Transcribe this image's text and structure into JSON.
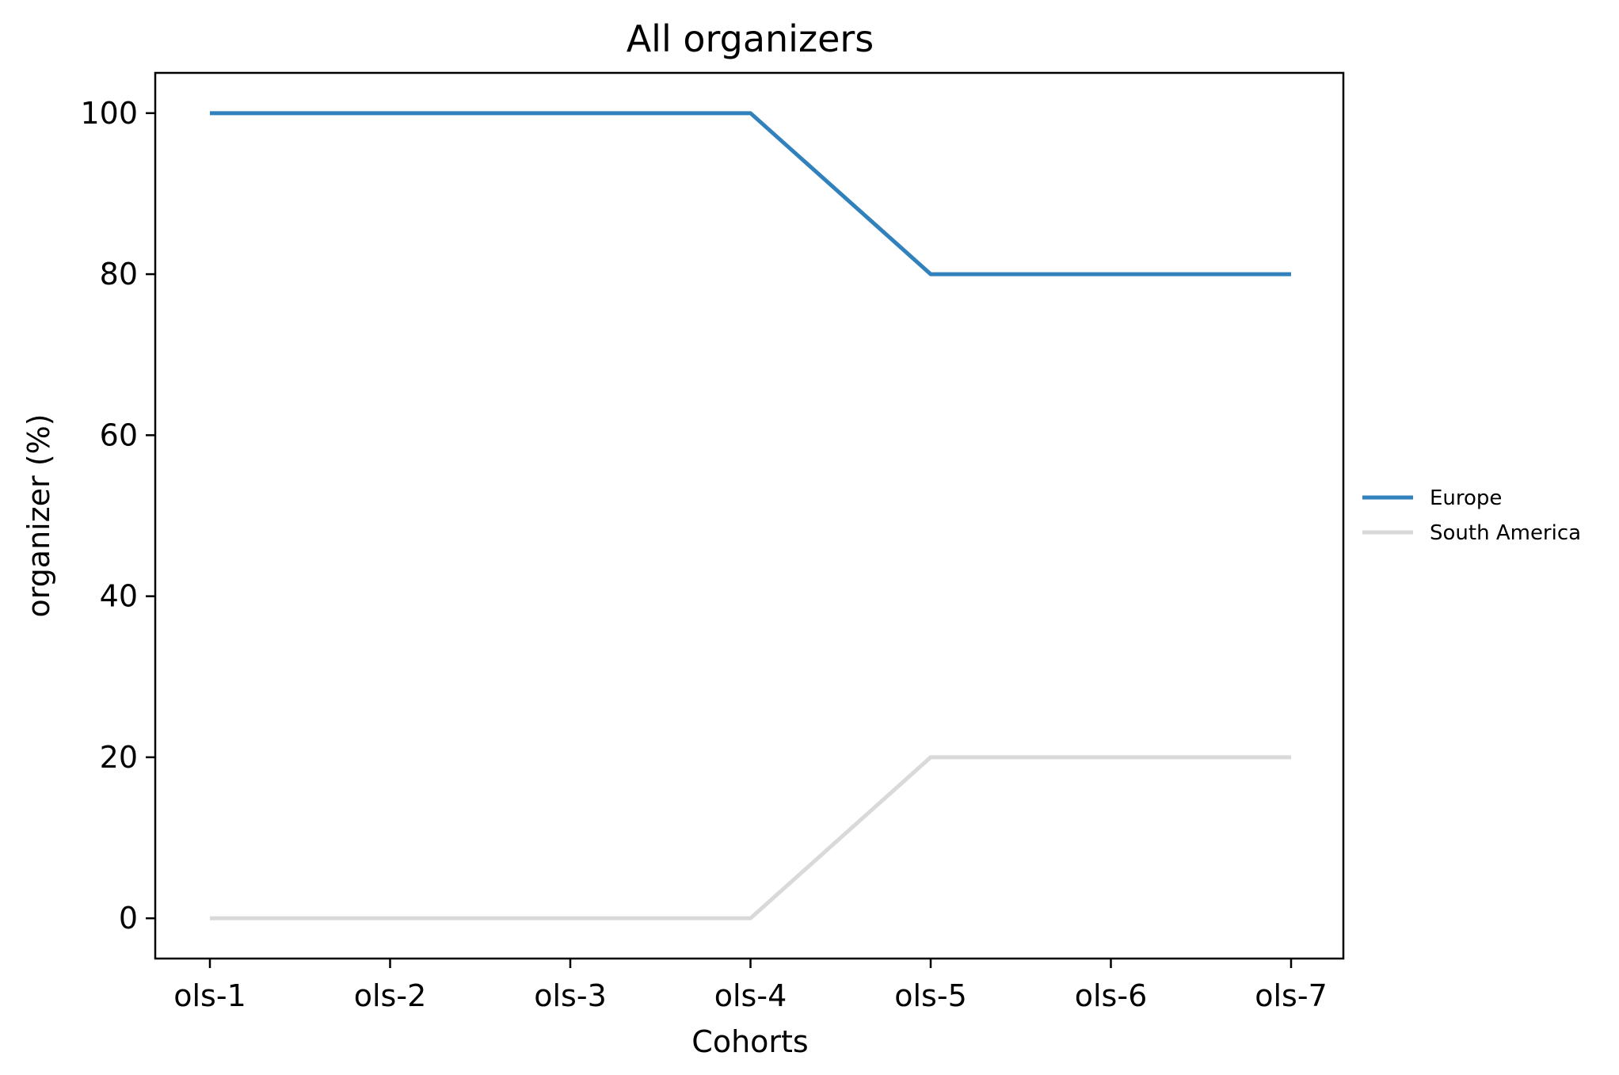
{
  "chart_data": {
    "type": "line",
    "title": "All organizers",
    "xlabel": "Cohorts",
    "ylabel": "organizer (%)",
    "categories": [
      "ols-1",
      "ols-2",
      "ols-3",
      "ols-4",
      "ols-5",
      "ols-6",
      "ols-7"
    ],
    "series": [
      {
        "name": "Europe",
        "color": "#3181bd",
        "values": [
          100,
          100,
          100,
          100,
          80,
          80,
          80
        ]
      },
      {
        "name": "South America",
        "color": "#d9d9d9",
        "values": [
          0,
          0,
          0,
          0,
          20,
          20,
          20
        ]
      }
    ],
    "yticks": [
      0,
      20,
      40,
      60,
      80,
      100
    ],
    "ylim": [
      -5,
      105
    ],
    "grid": false,
    "legend_position": "right"
  }
}
